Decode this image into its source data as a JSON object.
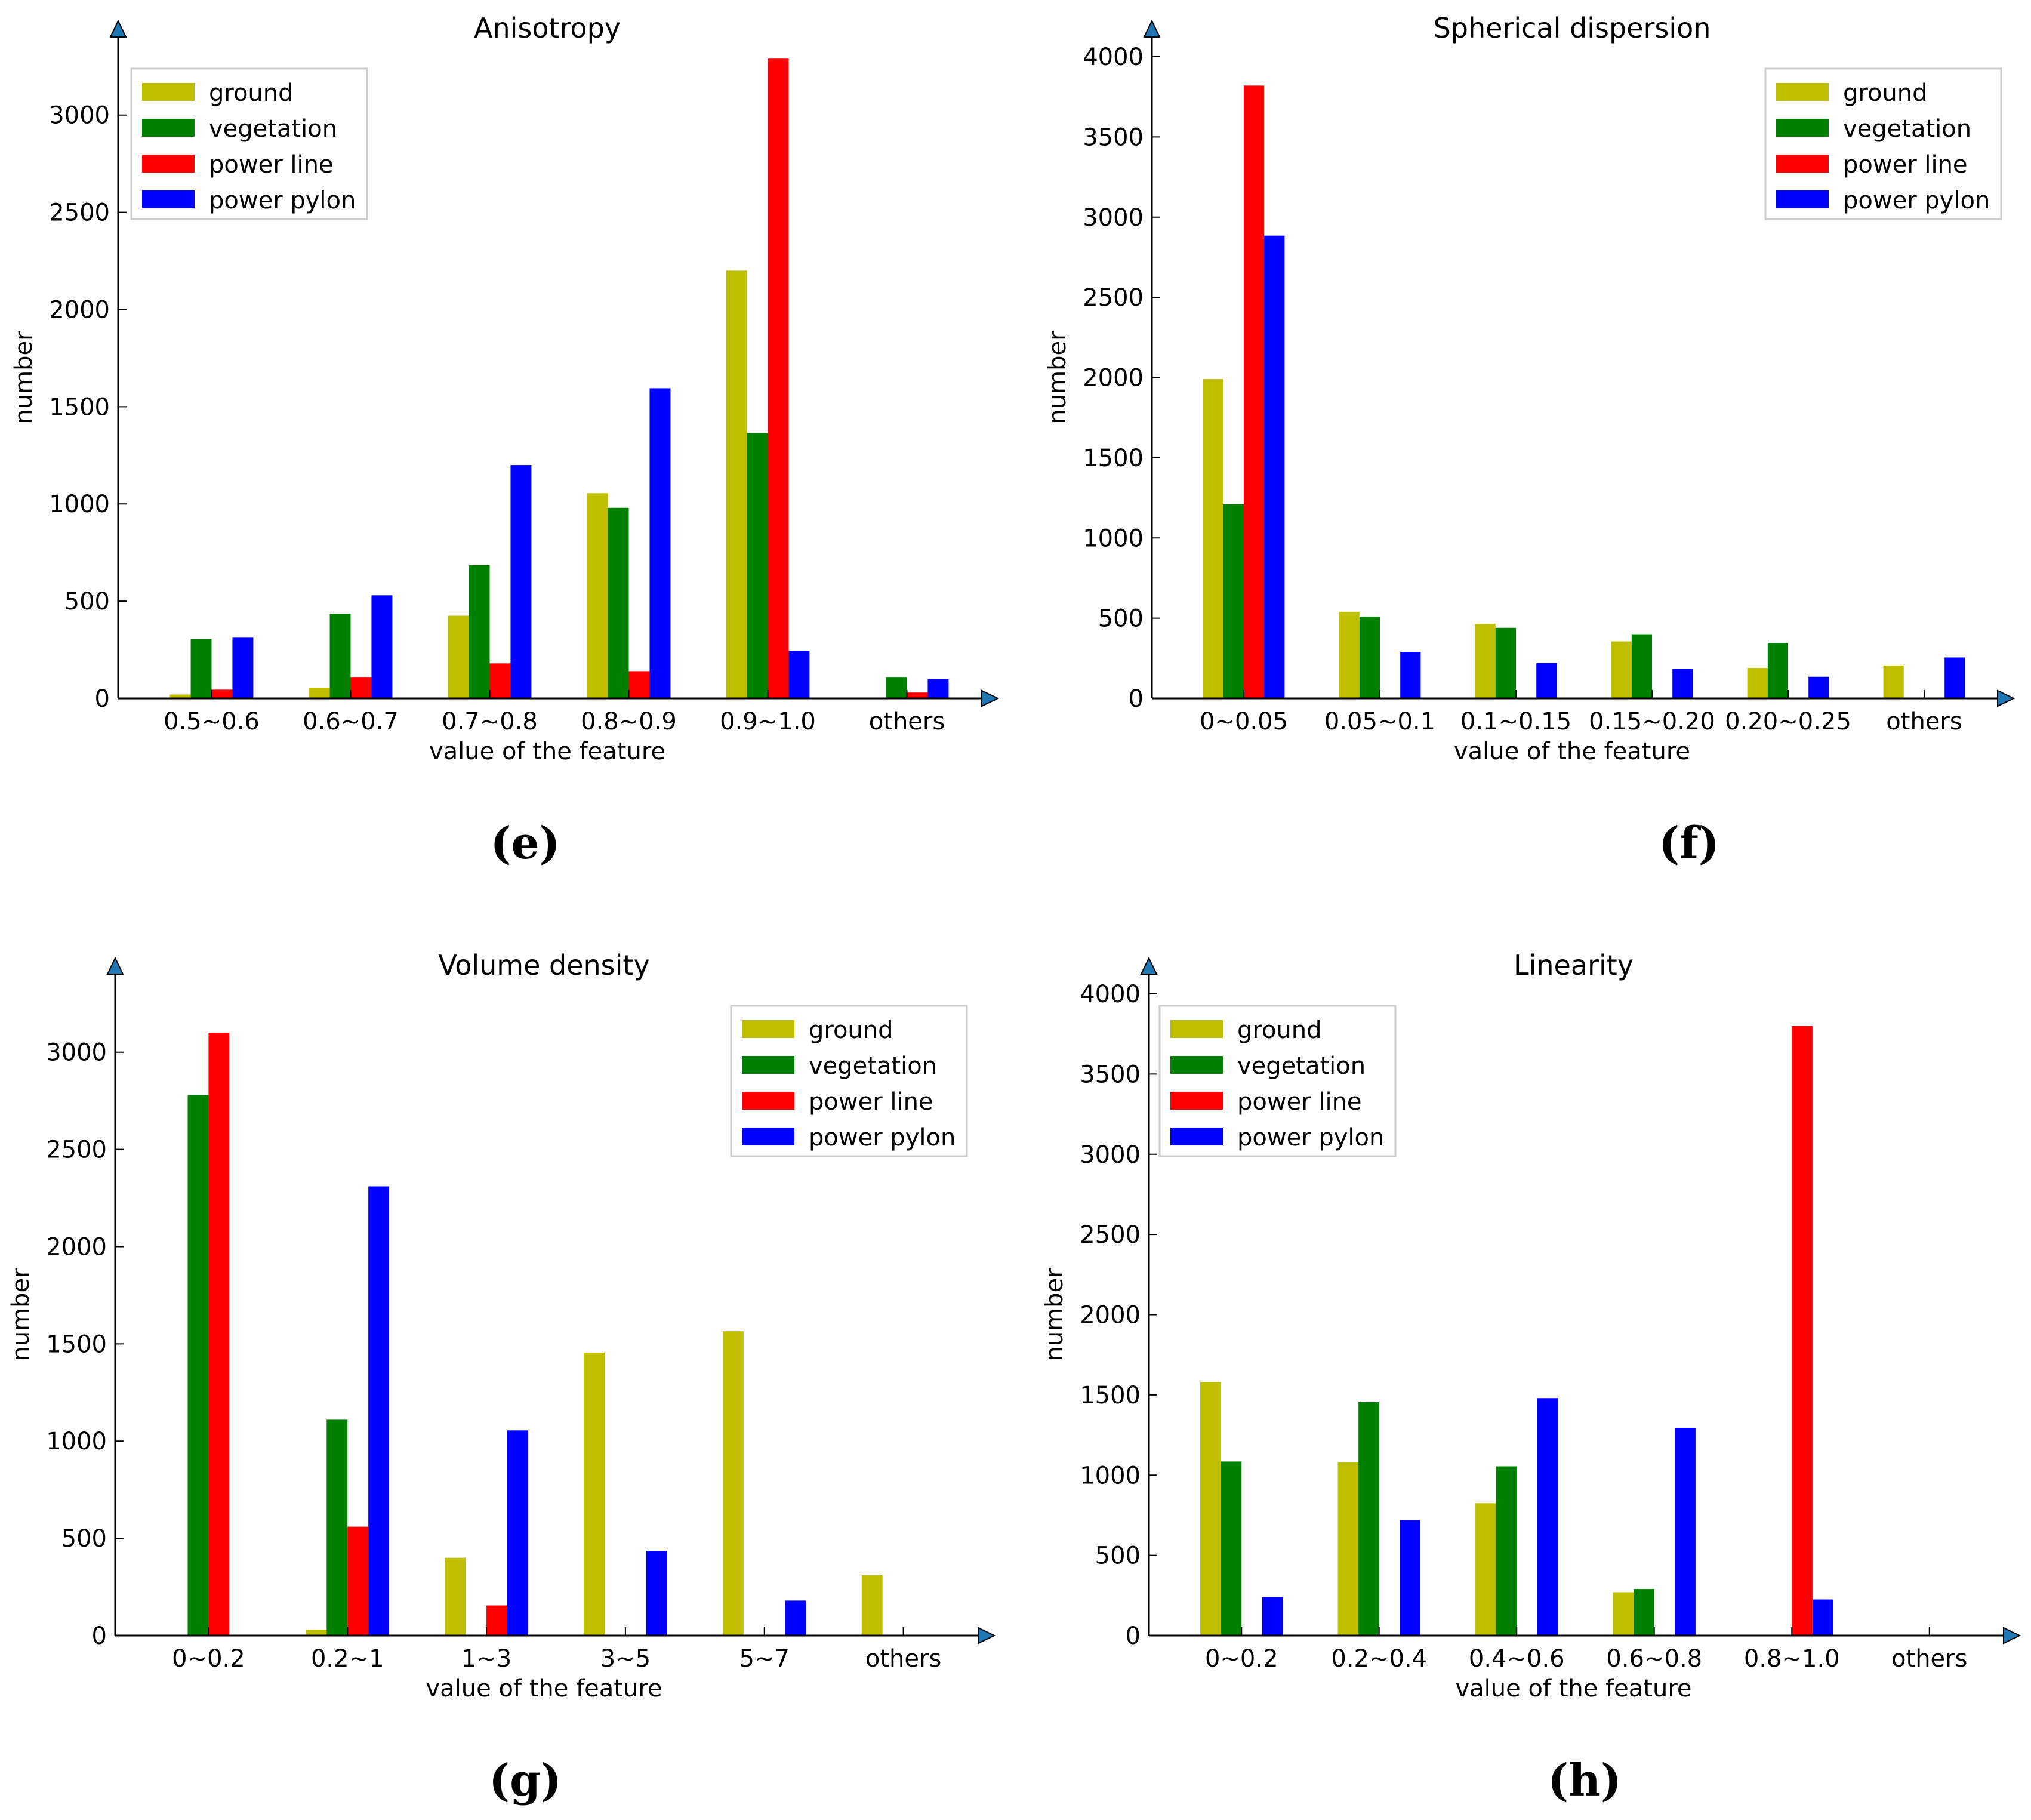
{
  "figure": {
    "captions": [
      "(e)",
      "(f)",
      "(g)",
      "(h)"
    ]
  },
  "legend_labels": [
    "ground",
    "vegetation",
    "power line",
    "power pylon"
  ],
  "series_colors": [
    "#bfbf00",
    "#008000",
    "#ff0000",
    "#0000ff"
  ],
  "chart_data": [
    {
      "type": "bar",
      "title": "Anisotropy",
      "xlabel": "value of the feature",
      "ylabel": "number",
      "ylim": [
        0,
        3300
      ],
      "yticks": [
        0,
        500,
        1000,
        1500,
        2000,
        2500,
        3000
      ],
      "legend_position": "top-left",
      "categories": [
        "0.5~0.6",
        "0.6~0.7",
        "0.7~0.8",
        "0.8~0.9",
        "0.9~1.0",
        "others"
      ],
      "series": [
        {
          "name": "ground",
          "values": [
            20,
            55,
            425,
            1055,
            2200,
            0
          ]
        },
        {
          "name": "vegetation",
          "values": [
            305,
            435,
            685,
            980,
            1365,
            110
          ]
        },
        {
          "name": "power line",
          "values": [
            45,
            110,
            180,
            140,
            3290,
            30
          ]
        },
        {
          "name": "power pylon",
          "values": [
            315,
            530,
            1200,
            1595,
            245,
            100
          ]
        }
      ]
    },
    {
      "type": "bar",
      "title": "Spherical dispersion",
      "xlabel": "value of the feature",
      "ylabel": "number",
      "ylim": [
        0,
        4000
      ],
      "yticks": [
        0,
        500,
        1000,
        1500,
        2000,
        2500,
        3000,
        3500,
        4000
      ],
      "legend_position": "top-right",
      "categories": [
        "0~0.05",
        "0.05~0.1",
        "0.1~0.15",
        "0.15~0.20",
        "0.20~0.25",
        "others"
      ],
      "series": [
        {
          "name": "ground",
          "values": [
            1990,
            540,
            465,
            355,
            190,
            205
          ]
        },
        {
          "name": "vegetation",
          "values": [
            1210,
            510,
            440,
            400,
            345,
            0
          ]
        },
        {
          "name": "power line",
          "values": [
            3820,
            0,
            0,
            0,
            0,
            0
          ]
        },
        {
          "name": "power pylon",
          "values": [
            2885,
            290,
            220,
            185,
            135,
            255
          ]
        }
      ]
    },
    {
      "type": "bar",
      "title": "Volume density",
      "xlabel": "value of the feature",
      "ylabel": "number",
      "ylim": [
        0,
        3300
      ],
      "yticks": [
        0,
        500,
        1000,
        1500,
        2000,
        2500,
        3000
      ],
      "legend_position": "top-right",
      "categories": [
        "0~0.2",
        "0.2~1",
        "1~3",
        "3~5",
        "5~7",
        "others"
      ],
      "series": [
        {
          "name": "ground",
          "values": [
            0,
            30,
            400,
            1455,
            1565,
            310
          ]
        },
        {
          "name": "vegetation",
          "values": [
            2780,
            1110,
            0,
            0,
            0,
            0
          ]
        },
        {
          "name": "power line",
          "values": [
            3100,
            560,
            155,
            0,
            0,
            0
          ]
        },
        {
          "name": "power pylon",
          "values": [
            0,
            2310,
            1055,
            435,
            180,
            0
          ]
        }
      ]
    },
    {
      "type": "bar",
      "title": "Linearity",
      "xlabel": "value of the feature",
      "ylabel": "number",
      "ylim": [
        0,
        4000
      ],
      "yticks": [
        0,
        500,
        1000,
        1500,
        2000,
        2500,
        3000,
        3500,
        4000
      ],
      "legend_position": "top-left",
      "categories": [
        "0~0.2",
        "0.2~0.4",
        "0.4~0.6",
        "0.6~0.8",
        "0.8~1.0",
        "others"
      ],
      "series": [
        {
          "name": "ground",
          "values": [
            1580,
            1080,
            825,
            270,
            0,
            0
          ]
        },
        {
          "name": "vegetation",
          "values": [
            1085,
            1455,
            1055,
            290,
            0,
            0
          ]
        },
        {
          "name": "power line",
          "values": [
            0,
            0,
            0,
            0,
            3800,
            0
          ]
        },
        {
          "name": "power pylon",
          "values": [
            240,
            720,
            1480,
            1295,
            225,
            0
          ]
        }
      ]
    }
  ]
}
